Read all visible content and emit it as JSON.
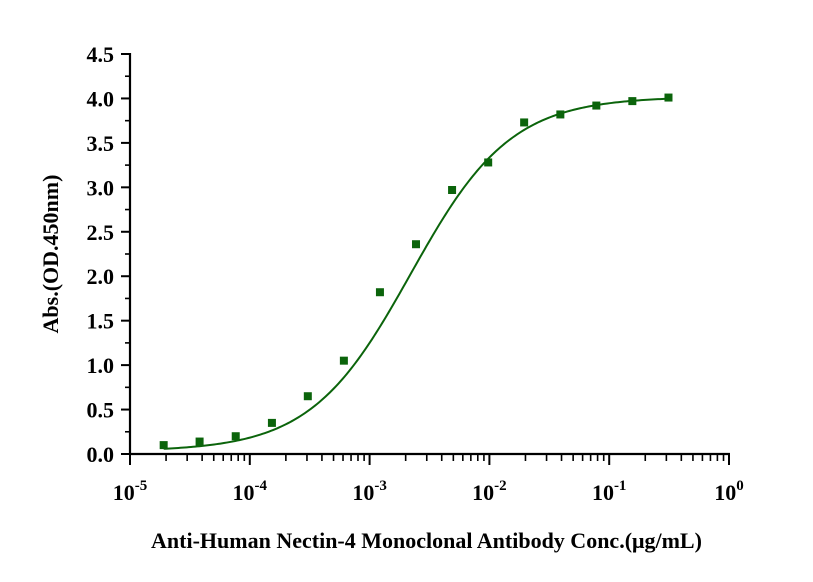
{
  "chart_data": {
    "type": "scatter",
    "title": "",
    "xlabel": "Anti-Human Nectin-4 Monoclonal Antibody Conc.(μg/mL)",
    "ylabel": "Abs.(OD.450nm)",
    "x_scale": "log",
    "xlim": [
      1e-05,
      1
    ],
    "ylim": [
      0,
      4.5
    ],
    "x_ticks": [
      {
        "value": 1e-05,
        "base": "10",
        "exp": "-5"
      },
      {
        "value": 0.0001,
        "base": "10",
        "exp": "-4"
      },
      {
        "value": 0.001,
        "base": "10",
        "exp": "-3"
      },
      {
        "value": 0.01,
        "base": "10",
        "exp": "-2"
      },
      {
        "value": 0.1,
        "base": "10",
        "exp": "-1"
      },
      {
        "value": 1,
        "base": "10",
        "exp": "0"
      }
    ],
    "y_ticks": [
      "0.0",
      "0.5",
      "1.0",
      "1.5",
      "2.0",
      "2.5",
      "3.0",
      "3.5",
      "4.0",
      "4.5"
    ],
    "grid": false,
    "marker_color": "#0b640b",
    "fit": {
      "model": "4PL",
      "bottom": 0.03,
      "top": 4.02,
      "ec50": 0.0022,
      "hill": 1.04,
      "color": "#0b640b"
    },
    "series": [
      {
        "x": [
          1.91e-05,
          3.81e-05,
          7.63e-05,
          0.000153,
          0.000305,
          0.00061,
          0.00122,
          0.00244,
          0.00488,
          0.00977,
          0.0195,
          0.0391,
          0.0781,
          0.156,
          0.3125
        ],
        "y": [
          0.1,
          0.14,
          0.2,
          0.35,
          0.65,
          1.05,
          1.82,
          2.36,
          2.97,
          3.28,
          3.73,
          3.82,
          3.92,
          3.97,
          4.01
        ]
      }
    ]
  }
}
